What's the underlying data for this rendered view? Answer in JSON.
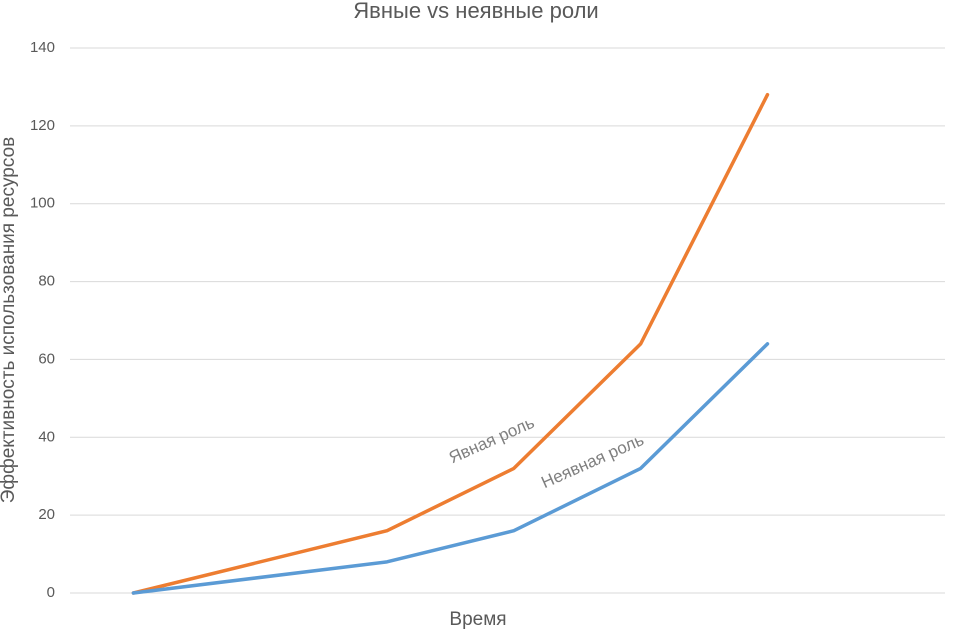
{
  "chart_data": {
    "type": "line",
    "title": "Явные vs неявные роли",
    "x_label": "Время",
    "y_label": "Эффективность использования ресурсов",
    "x": [
      0,
      2,
      3,
      4,
      5
    ],
    "xlim": [
      -0.5,
      6.4
    ],
    "ylim": [
      0,
      140
    ],
    "yticks": [
      0,
      20,
      40,
      60,
      80,
      100,
      120,
      140
    ],
    "grid": true,
    "series": [
      {
        "name": "Явная роль",
        "color": "#ed7d31",
        "values": [
          0,
          16,
          32,
          64,
          128
        ]
      },
      {
        "name": "Неявная роль",
        "color": "#5b9bd5",
        "values": [
          0,
          8,
          16,
          32,
          64
        ]
      }
    ]
  }
}
